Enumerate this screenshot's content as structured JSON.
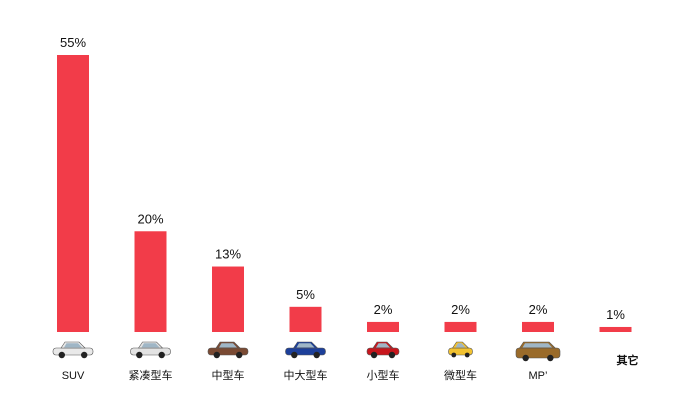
{
  "chart_data": {
    "type": "bar",
    "categories": [
      "SUV",
      "紧凑型车",
      "中型车",
      "中大型车",
      "小型车",
      "微型车",
      "MP’",
      "其它"
    ],
    "values": [
      55,
      20,
      13,
      5,
      2,
      2,
      2,
      1
    ],
    "value_labels": [
      "55%",
      "20%",
      "13%",
      "5%",
      "2%",
      "2%",
      "2%",
      "1%"
    ],
    "value_unit": "%",
    "title": "",
    "xlabel": "",
    "ylabel": "",
    "ylim": [
      0,
      55
    ],
    "grid": false,
    "legend": "none",
    "colors": {
      "bar": "#f23c49",
      "text": "#111111"
    },
    "category_icons": [
      "white-suv-icon",
      "silver-sedan-icon",
      "brown-sedan-icon",
      "blue-sedan-icon",
      "red-hatchback-icon",
      "yellow-minicar-icon",
      "gold-mpv-icon",
      ""
    ],
    "icon_colors": [
      "#e9e9e9",
      "#e3e3e3",
      "#7a4a33",
      "#1c3f9a",
      "#c8161d",
      "#f2c230",
      "#9a6b2a",
      ""
    ]
  }
}
